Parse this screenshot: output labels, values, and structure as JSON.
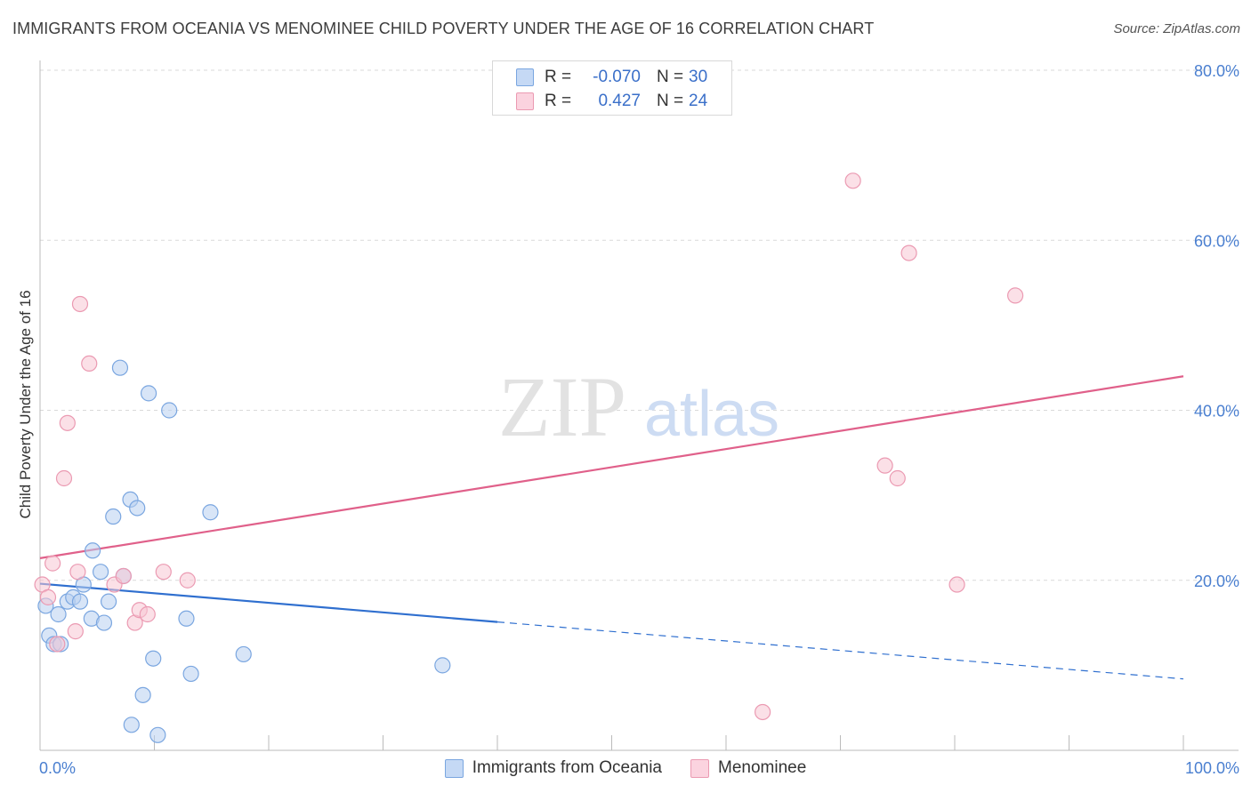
{
  "title": "IMMIGRANTS FROM OCEANIA VS MENOMINEE CHILD POVERTY UNDER THE AGE OF 16 CORRELATION CHART",
  "source": "Source: ZipAtlas.com",
  "watermark": {
    "zip": "ZIP",
    "atlas": "atlas"
  },
  "legend": {
    "series1": {
      "r_label": "R =",
      "r_value": "-0.070",
      "n_label": "N =",
      "n_value": "30"
    },
    "series2": {
      "r_label": "R =",
      "r_value": "0.427",
      "n_label": "N =",
      "n_value": "24"
    }
  },
  "colors": {
    "blue_fill": "#b8d0f0",
    "blue_stroke": "#7aa6e0",
    "blue_line": "#2f6fcf",
    "pink_fill": "#f8c6d4",
    "pink_stroke": "#eb9ab2",
    "pink_line": "#e0608a",
    "axis_text": "#4a7fd0",
    "grid": "#d9d9d9"
  },
  "chart_data": {
    "type": "scatter",
    "title": "IMMIGRANTS FROM OCEANIA VS MENOMINEE CHILD POVERTY UNDER THE AGE OF 16 CORRELATION CHART",
    "xlabel": "",
    "ylabel": "Child Poverty Under the Age of 16",
    "xlim": [
      0,
      100
    ],
    "ylim": [
      0,
      80
    ],
    "x_tick_labels": [
      "0.0%",
      "100.0%"
    ],
    "y_ticks": [
      20,
      40,
      60,
      80
    ],
    "y_tick_labels": [
      "20.0%",
      "40.0%",
      "60.0%",
      "80.0%"
    ],
    "grid": true,
    "series": [
      {
        "name": "Immigrants from Oceania",
        "color": "blue",
        "points": [
          [
            0.5,
            17.0
          ],
          [
            0.8,
            13.5
          ],
          [
            1.2,
            12.5
          ],
          [
            1.6,
            16.0
          ],
          [
            1.8,
            12.5
          ],
          [
            2.4,
            17.5
          ],
          [
            2.9,
            18.0
          ],
          [
            3.5,
            17.5
          ],
          [
            3.8,
            19.5
          ],
          [
            4.5,
            15.5
          ],
          [
            4.6,
            23.5
          ],
          [
            5.3,
            21.0
          ],
          [
            5.6,
            15.0
          ],
          [
            6.0,
            17.5
          ],
          [
            6.4,
            27.5
          ],
          [
            7.3,
            20.5
          ],
          [
            7.9,
            29.5
          ],
          [
            8.0,
            3.0
          ],
          [
            8.5,
            28.5
          ],
          [
            9.0,
            6.5
          ],
          [
            9.5,
            42.0
          ],
          [
            9.9,
            10.8
          ],
          [
            10.3,
            1.8
          ],
          [
            11.3,
            40.0
          ],
          [
            12.8,
            15.5
          ],
          [
            13.2,
            9.0
          ],
          [
            14.9,
            28.0
          ],
          [
            17.8,
            11.3
          ],
          [
            35.2,
            10.0
          ],
          [
            7.0,
            45.0
          ]
        ],
        "trend": {
          "x": [
            0,
            40
          ],
          "y": [
            19.6,
            15.1
          ],
          "dashed_to": [
            100,
            8.4
          ]
        }
      },
      {
        "name": "Menominee",
        "color": "pink",
        "points": [
          [
            0.2,
            19.5
          ],
          [
            0.7,
            18.0
          ],
          [
            1.1,
            22.0
          ],
          [
            1.5,
            12.5
          ],
          [
            2.1,
            32.0
          ],
          [
            2.4,
            38.5
          ],
          [
            3.1,
            14.0
          ],
          [
            3.3,
            21.0
          ],
          [
            3.5,
            52.5
          ],
          [
            4.3,
            45.5
          ],
          [
            6.5,
            19.5
          ],
          [
            7.3,
            20.5
          ],
          [
            8.3,
            15.0
          ],
          [
            8.7,
            16.5
          ],
          [
            9.4,
            16.0
          ],
          [
            10.8,
            21.0
          ],
          [
            12.9,
            20.0
          ],
          [
            63.2,
            4.5
          ],
          [
            71.1,
            67.0
          ],
          [
            73.9,
            33.5
          ],
          [
            75.0,
            32.0
          ],
          [
            76.0,
            58.5
          ],
          [
            80.2,
            19.5
          ],
          [
            85.3,
            53.5
          ]
        ],
        "trend": {
          "x": [
            0,
            100
          ],
          "y": [
            22.6,
            44.0
          ]
        }
      }
    ]
  },
  "bottom_legend": [
    "Immigrants from Oceania",
    "Menominee"
  ]
}
